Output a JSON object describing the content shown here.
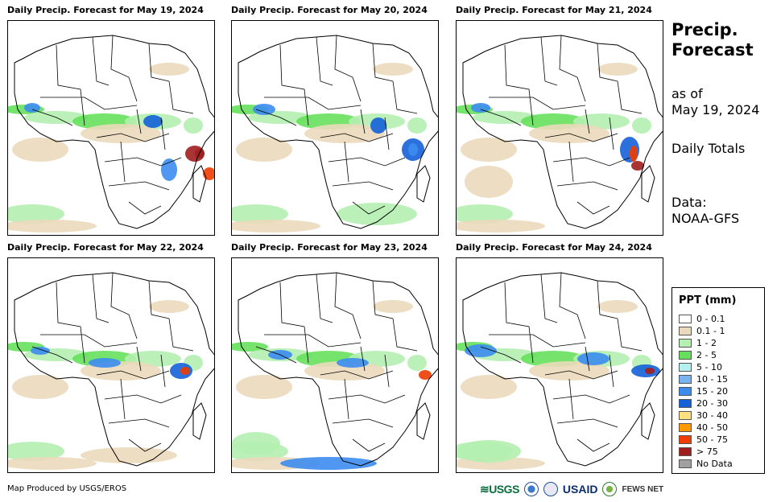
{
  "panels": [
    {
      "title": "Daily Precip. Forecast for May 19, 2024"
    },
    {
      "title": "Daily Precip. Forecast for May 20, 2024"
    },
    {
      "title": "Daily Precip. Forecast for May 21, 2024"
    },
    {
      "title": "Daily Precip. Forecast for May 22, 2024"
    },
    {
      "title": "Daily Precip. Forecast for May 23, 2024"
    },
    {
      "title": "Daily Precip. Forecast for May 24, 2024"
    }
  ],
  "sidebar": {
    "title": "Precip. Forecast",
    "as_of_label": "as of",
    "as_of_date": "May 19, 2024",
    "totals": "Daily Totals",
    "data_label": "Data:",
    "data_source": "NOAA-GFS"
  },
  "legend": {
    "title": "PPT (mm)",
    "items": [
      {
        "label": "0 - 0.1",
        "color": "#ffffff"
      },
      {
        "label": "0.1 - 1",
        "color": "#ebd9bb"
      },
      {
        "label": "1 - 2",
        "color": "#b4f0b0"
      },
      {
        "label": "2 - 5",
        "color": "#66e05c"
      },
      {
        "label": "5 - 10",
        "color": "#b4f0f0"
      },
      {
        "label": "10 - 15",
        "color": "#78b4f0"
      },
      {
        "label": "15 - 20",
        "color": "#3c8cf0"
      },
      {
        "label": "20 - 30",
        "color": "#1460d8"
      },
      {
        "label": "30 - 40",
        "color": "#ffe080"
      },
      {
        "label": "40 - 50",
        "color": "#ff9a00"
      },
      {
        "label": "50 - 75",
        "color": "#f03c00"
      },
      {
        "label": "> 75",
        "color": "#a01e1e"
      },
      {
        "label": "No Data",
        "color": "#a0a0a0"
      }
    ]
  },
  "footer": {
    "credit": "Map Produced by USGS/EROS",
    "logos": {
      "usgs": "≋USGS",
      "usaid": "USAID",
      "fews": "FEWS NET"
    }
  }
}
